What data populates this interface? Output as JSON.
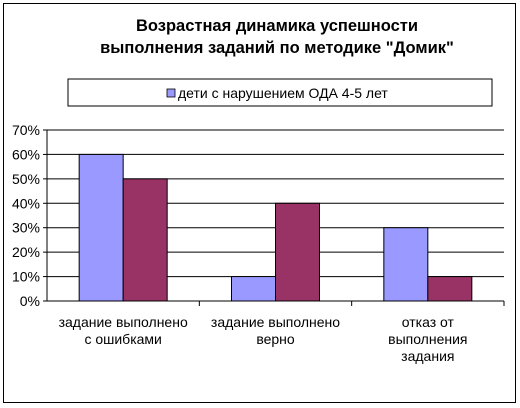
{
  "chart_data": {
    "type": "bar",
    "title_lines": [
      "Возрастная динамика успешности",
      "выполнения заданий по методике \"Домик\""
    ],
    "categories": [
      [
        "задание  выполнено",
        "с ошибками"
      ],
      [
        "задание  выполнено",
        "верно"
      ],
      [
        "отказ от",
        "выполнения",
        "задания"
      ]
    ],
    "series": [
      {
        "name": "дети с нарушением ОДА 4-5 лет",
        "values": [
          60,
          10,
          30
        ],
        "color": "#9999FF"
      },
      {
        "values": [
          50,
          40,
          10
        ],
        "color": "#993366"
      }
    ],
    "y_ticks": [
      "0%",
      "10%",
      "20%",
      "30%",
      "40%",
      "50%",
      "60%",
      "70%"
    ],
    "ylim": [
      0,
      70
    ],
    "y_step": 10,
    "grid": true,
    "legend_position": "top"
  }
}
